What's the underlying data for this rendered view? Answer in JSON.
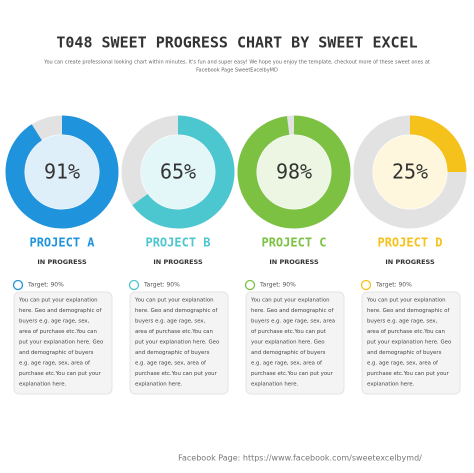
{
  "header": {
    "title": "T048 SWEET PROGRESS CHART BY SWEET EXCEL",
    "subtitle": [
      "You can create professional looking chart within minutes. It's fun and super easy! We hope you enjoy the template, checkout more of these sweet ones at",
      "Facebook Page SweetExcelbyMD"
    ]
  },
  "chart_data": [
    {
      "type": "donut",
      "title": "PROJECT A",
      "subtitle": "IN PROGRESS",
      "values": [
        91
      ],
      "value_labels": [
        "91%"
      ],
      "color": "#1f93dc",
      "target": "Target: 90%",
      "lines": [
        "You can put your explanation",
        "here. Geo and demographic of",
        "buyers e.g. age rage, sex,",
        "area of purchase etc.You can",
        "put your explanation here. Geo",
        "and demographic of buyers",
        "e.g. age rage, sex, area of",
        "purchase etc.You can put your",
        "explanation here."
      ]
    },
    {
      "type": "donut",
      "title": "PROJECT B",
      "subtitle": "IN PROGRESS",
      "values": [
        65
      ],
      "value_labels": [
        "65%"
      ],
      "color": "#4cc6cf",
      "target": "Target: 90%",
      "lines": [
        "You can put your explanation",
        "here. Geo and demographic of",
        "buyers e.g. age rage, sex,",
        "area of purchase etc.You can",
        "put your explanation here. Geo",
        "and demographic of buyers",
        "e.g. age rage, sex, area of",
        "purchase etc.You can put your",
        "explanation here."
      ]
    },
    {
      "type": "donut",
      "title": "PROJECT C",
      "subtitle": "IN PROGRESS",
      "values": [
        98
      ],
      "value_labels": [
        "98%"
      ],
      "color": "#7dc143",
      "target": "Target: 90%",
      "lines": [
        "You can put your explanation",
        "here. Geo and demographic of",
        "buyers e.g. age rage, sex, area",
        "of purchase etc.You can put",
        "your explanation here. Geo",
        "and demographic of buyers",
        "e.g. age rage, sex, area of",
        "purchase etc.You can put your",
        "explanation here."
      ]
    },
    {
      "type": "donut",
      "title": "PROJECT D",
      "subtitle": "IN PROGRESS",
      "values": [
        25
      ],
      "value_labels": [
        "25%"
      ],
      "color": "#f5c21b",
      "target": "Target: 90%",
      "lines": [
        "You can put your explanation",
        "here. Geo and demographic of",
        "buyers e.g. age rage, sex,",
        "area of purchase etc.You can",
        "put your explanation here. Geo",
        "and demographic of buyers",
        "e.g. age rage, sex, area of",
        "purchase etc.You can put your",
        "explanation here."
      ]
    }
  ],
  "footer": "Facebook Page: https://www.facebook.com/sweetexcelbymd/"
}
